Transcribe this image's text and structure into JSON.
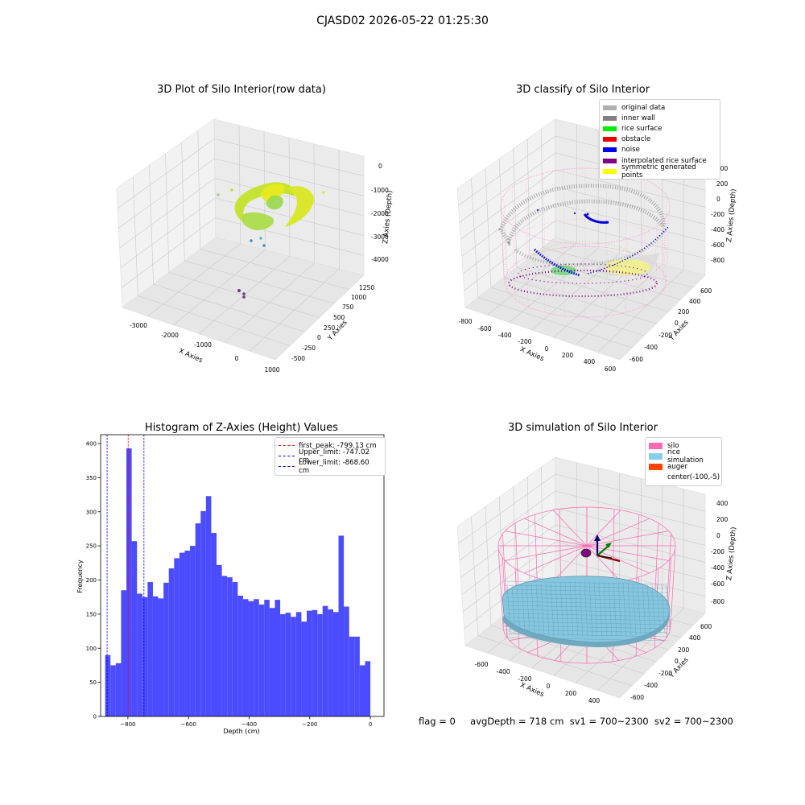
{
  "suptitle": "CJASD02 2026-05-22 01:25:30",
  "footer": {
    "flag": "flag = 0",
    "stats": "avgDepth = 718 cm  sv1 = 700~2300  sv2 = 700~2300"
  },
  "plots": {
    "raw": {
      "title": "3D Plot of Silo Interior(row data)",
      "xlabel": "X Axies",
      "ylabel": "Y Axies",
      "zlabel": "Z Axies (Depth)",
      "xticks": [
        "-3000",
        "-2000",
        "-1000",
        "0",
        "1000"
      ],
      "yticks": [
        "-500",
        "-250",
        "0",
        "250",
        "500",
        "750",
        "1000",
        "1250"
      ],
      "zticks": [
        "0",
        "-1000",
        "-2000",
        "-3000",
        "-4000"
      ]
    },
    "classify": {
      "title": "3D classify of Silo Interior",
      "xlabel": "X Axies",
      "ylabel": "Y Axies",
      "zlabel": "Z Axies (Depth)",
      "xticks": [
        "-800",
        "-600",
        "-400",
        "-200",
        "0",
        "200",
        "400",
        "600"
      ],
      "yticks": [
        "-600",
        "-400",
        "-200",
        "0",
        "200",
        "400",
        "600"
      ],
      "zticks": [
        "400",
        "200",
        "0",
        "-200",
        "-400",
        "-600",
        "-800"
      ],
      "legend": [
        {
          "label": "original data",
          "color": "#b0b0b0"
        },
        {
          "label": "inner wall",
          "color": "#808080"
        },
        {
          "label": "rice surface",
          "color": "#00ee00"
        },
        {
          "label": "obstacle",
          "color": "#ee0000"
        },
        {
          "label": "noise",
          "color": "#0000ee"
        },
        {
          "label": "interpolated rice surface",
          "color": "#800080"
        },
        {
          "label": "symmetric generated points",
          "color": "#ffff00"
        }
      ]
    },
    "simulation": {
      "title": "3D simulation of Silo Interior",
      "xlabel": "X Axies",
      "ylabel": "Y Axies",
      "zlabel": "Z Axies (Depth)",
      "xticks": [
        "-600",
        "-400",
        "-200",
        "0",
        "200",
        "400"
      ],
      "yticks": [
        "-600",
        "-400",
        "-200",
        "0",
        "200",
        "400",
        "600"
      ],
      "zticks": [
        "400",
        "200",
        "0",
        "-200",
        "-400",
        "-600",
        "-800"
      ],
      "legend": [
        {
          "label": "silo",
          "color": "#ff69b4"
        },
        {
          "label": "rice simulation",
          "color": "#87ceeb"
        },
        {
          "label": "auger",
          "color": "#ff4500"
        },
        {
          "label": "center(-100,-5)",
          "color": ""
        }
      ]
    }
  },
  "chart_data": {
    "type": "bar",
    "title": "Histogram of Z-Axies (Height) Values",
    "xlabel": "Depth (cm)",
    "ylabel": "Frequency",
    "xlim": [
      -890,
      45
    ],
    "ylim": [
      0,
      413
    ],
    "xticks": [
      -800,
      -600,
      -400,
      -200,
      0
    ],
    "yticks": [
      0,
      50,
      100,
      150,
      200,
      250,
      300,
      350,
      400
    ],
    "bar_color": "#4b4bff",
    "bin_start": -875,
    "bin_width": 17.5,
    "values": [
      90,
      75,
      78,
      185,
      393,
      257,
      180,
      175,
      197,
      176,
      173,
      196,
      217,
      232,
      240,
      243,
      250,
      283,
      301,
      323,
      269,
      222,
      206,
      204,
      197,
      177,
      172,
      169,
      172,
      164,
      171,
      159,
      171,
      150,
      152,
      146,
      153,
      139,
      155,
      156,
      150,
      162,
      157,
      153,
      265,
      161,
      117,
      117,
      75,
      81
    ],
    "vlines": [
      {
        "label": "first_peak: -799.13 cm",
        "x": -799.13,
        "color": "#ff0000"
      },
      {
        "label": "Upper_limit: -747.02 cm",
        "x": -747.02,
        "color": "#0000ff"
      },
      {
        "label": "Lower_limit: -868.60 cm",
        "x": -868.6,
        "color": "#0000ff"
      }
    ]
  }
}
